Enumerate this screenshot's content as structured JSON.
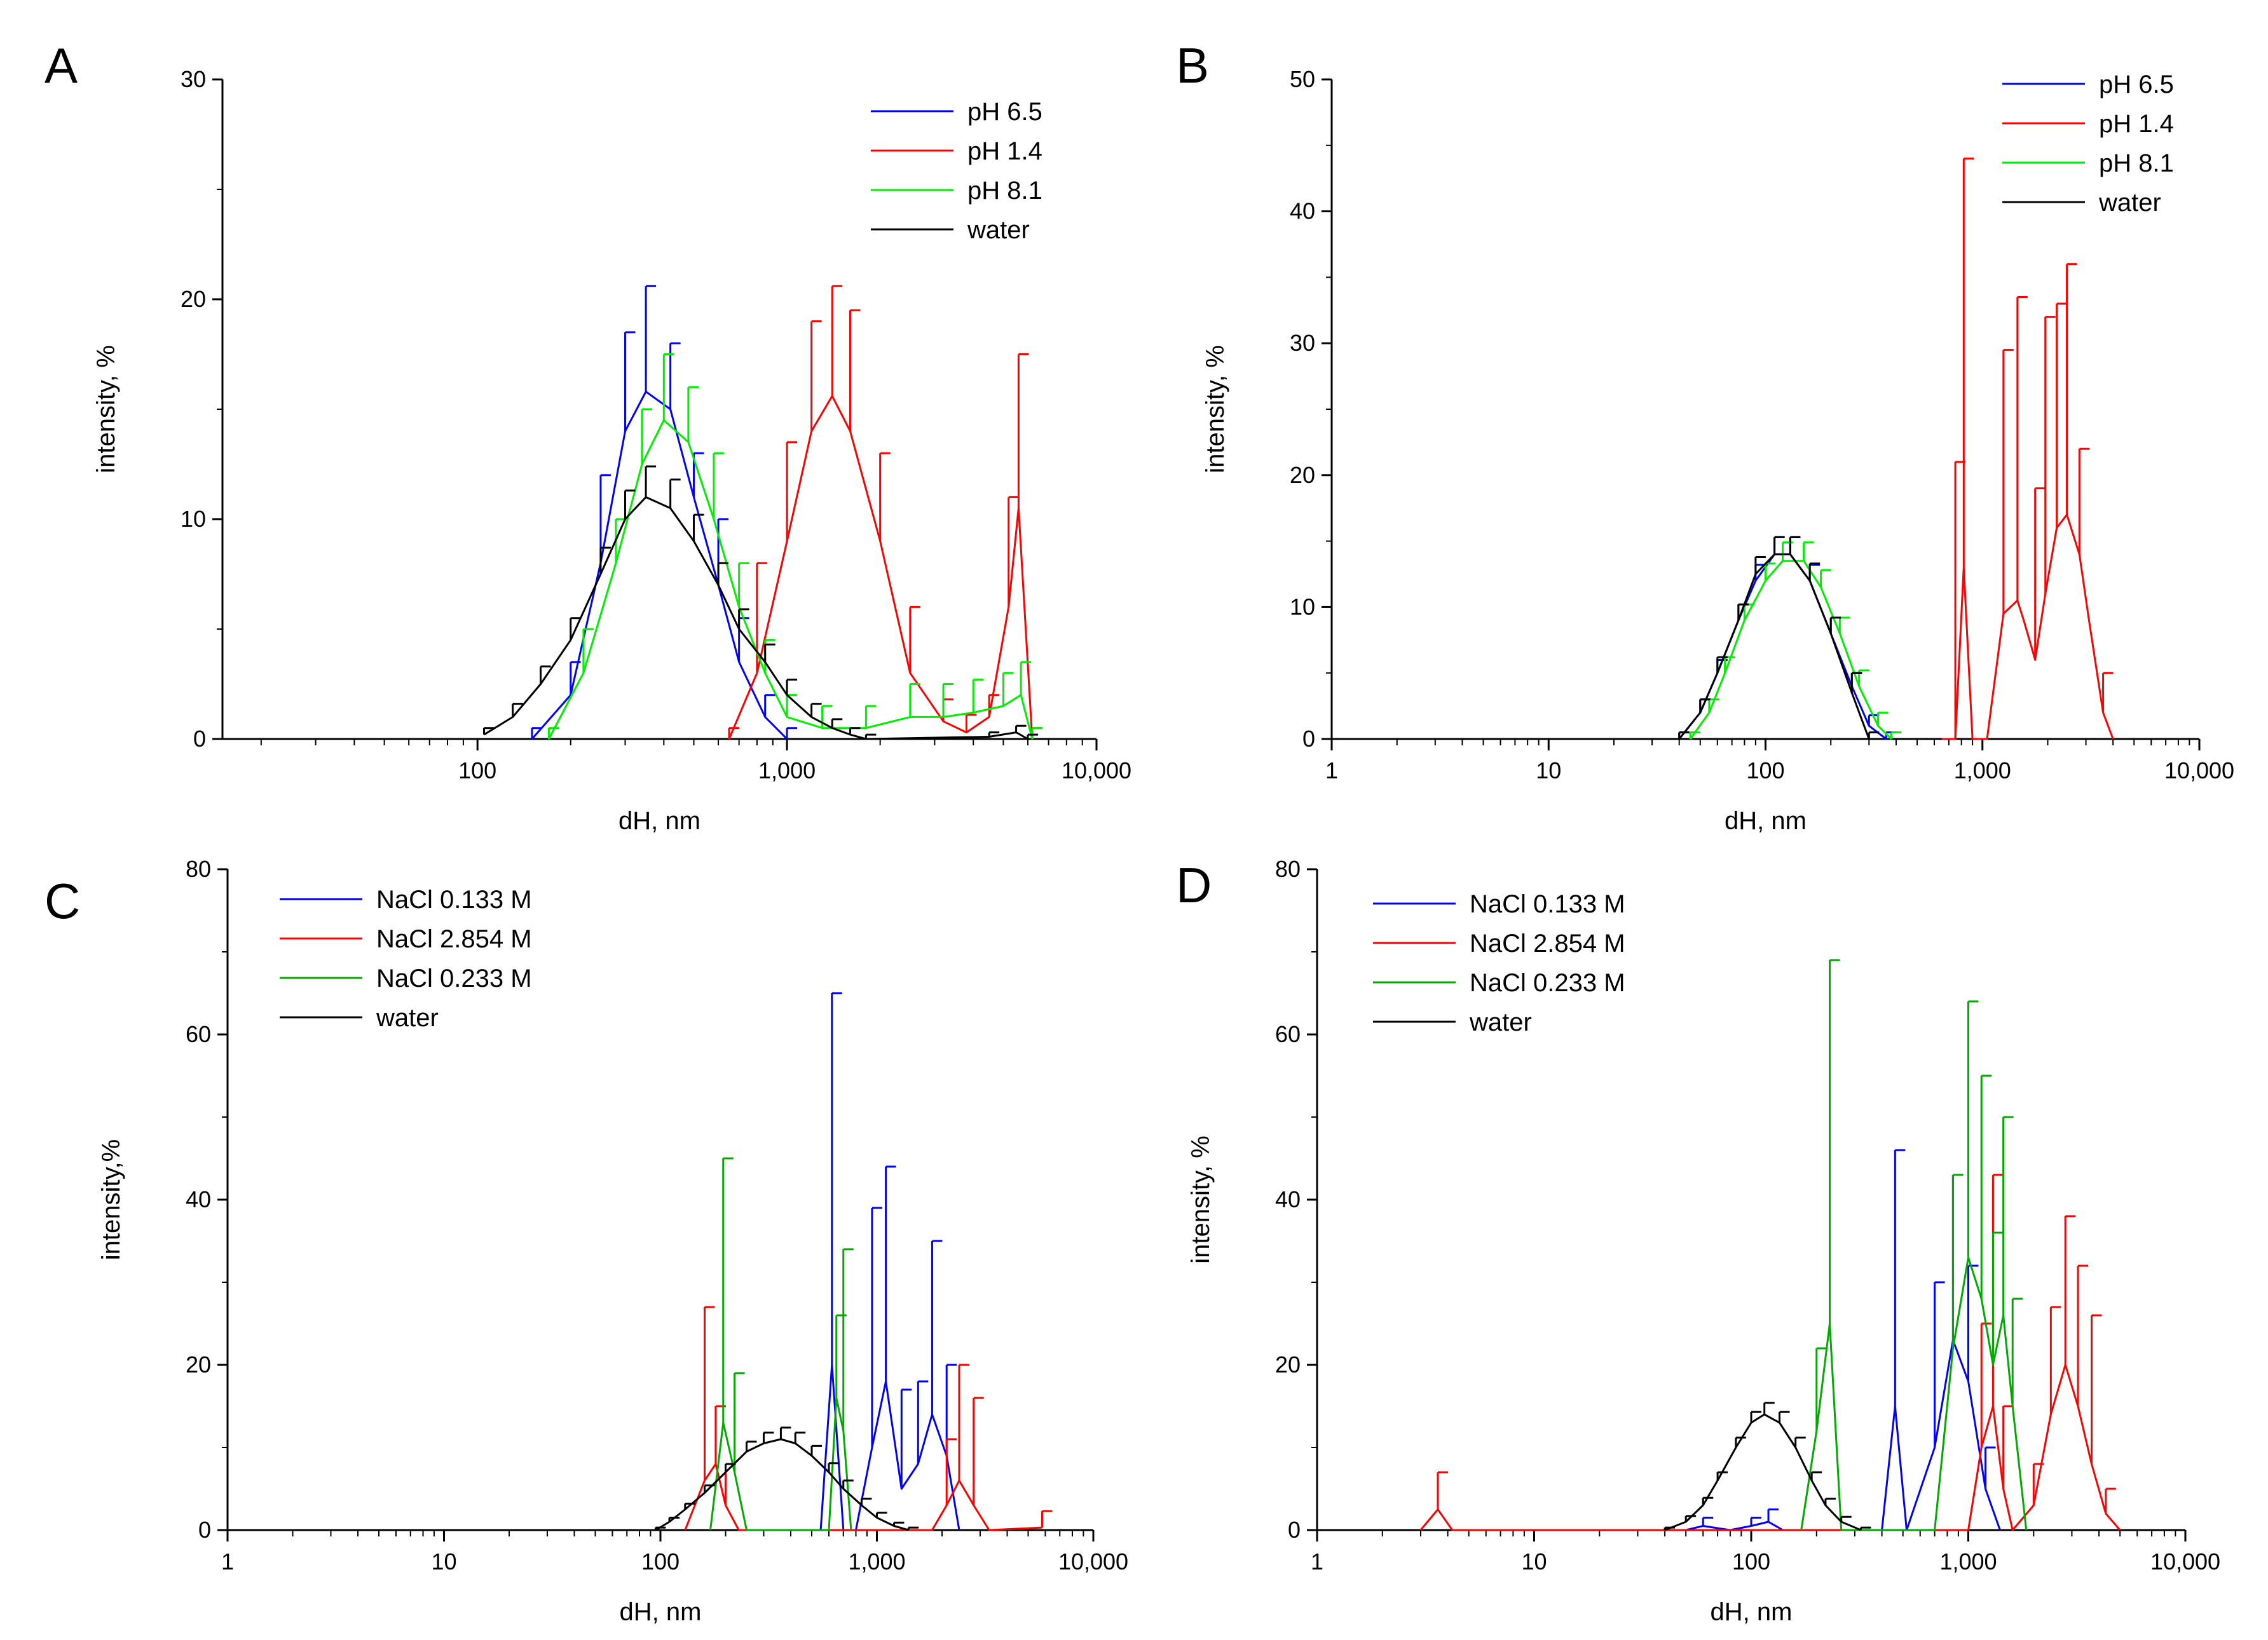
{
  "chart_data": [
    {
      "panel": "A",
      "type": "line",
      "title": "",
      "xlabel": "dH, nm",
      "ylabel": "intensity, %",
      "xscale": "log",
      "xlim": [
        15,
        10000
      ],
      "ylim": [
        0,
        30
      ],
      "xticks": [
        100,
        1000,
        10000
      ],
      "xtick_labels": [
        "100",
        "1,000",
        "10,000"
      ],
      "yticks": [
        0,
        10,
        20,
        30
      ],
      "ytick_labels": [
        "0",
        "10",
        "20",
        "30"
      ],
      "legend_position": "top-right",
      "series": [
        {
          "name": "pH 6.5",
          "color": "#0000ff",
          "x": [
            150,
            200,
            250,
            300,
            350,
            420,
            500,
            600,
            700,
            850,
            1000
          ],
          "y": [
            0,
            2,
            8,
            14,
            15.8,
            15,
            11,
            7,
            3.5,
            1,
            0
          ],
          "err": [
            0.5,
            1.5,
            4,
            4.5,
            4.8,
            3,
            2,
            3,
            2,
            1,
            0.5
          ]
        },
        {
          "name": "pH 1.4",
          "color": "#ff0000",
          "x": [
            650,
            800,
            1000,
            1200,
            1400,
            1600,
            2000,
            2500,
            3200,
            3800,
            4500,
            5200,
            5600,
            6200
          ],
          "y": [
            0,
            3,
            9,
            14,
            15.6,
            14,
            9,
            3,
            0.8,
            0.3,
            1,
            6,
            10.5,
            0
          ],
          "err": [
            0.5,
            5,
            4.5,
            5,
            5,
            5.5,
            4,
            3,
            1,
            0.8,
            1,
            5,
            7,
            0.5
          ]
        },
        {
          "name": "pH 8.1",
          "color": "#00ee00",
          "x": [
            170,
            220,
            280,
            340,
            400,
            480,
            580,
            700,
            850,
            1000,
            1300,
            1800,
            2500,
            3200,
            4000,
            5000,
            5700,
            6200
          ],
          "y": [
            0,
            3,
            8,
            12.5,
            14.5,
            13.5,
            10,
            6,
            3,
            1,
            0.5,
            0.5,
            1,
            1,
            1.2,
            1.5,
            2,
            0
          ],
          "err": [
            0.5,
            2,
            2,
            2.5,
            3,
            2.5,
            3,
            2,
            1.5,
            1,
            1,
            1,
            1.5,
            1.5,
            1.5,
            1.5,
            1.5,
            0.5
          ]
        },
        {
          "name": "water",
          "color": "#000000",
          "x": [
            105,
            130,
            160,
            200,
            250,
            300,
            350,
            420,
            500,
            600,
            700,
            850,
            1000,
            1200,
            1400,
            1600,
            1800,
            4500,
            5500,
            6000
          ],
          "y": [
            0.2,
            1,
            2.5,
            4.5,
            7.5,
            10,
            11,
            10.5,
            9,
            7,
            5,
            3.5,
            2,
            1,
            0.5,
            0.2,
            0,
            0.1,
            0.3,
            0
          ],
          "err": [
            0.3,
            0.6,
            0.8,
            1,
            1.2,
            1.3,
            1.4,
            1.3,
            1.2,
            1,
            0.9,
            0.8,
            0.7,
            0.6,
            0.4,
            0.3,
            0.2,
            0.2,
            0.3,
            0.2
          ]
        }
      ]
    },
    {
      "panel": "B",
      "type": "line",
      "title": "",
      "xlabel": "dH, nm",
      "ylabel": "intensity, %",
      "xscale": "log",
      "xlim": [
        1,
        10000
      ],
      "ylim": [
        0,
        50
      ],
      "xticks": [
        1,
        10,
        100,
        1000,
        10000
      ],
      "xtick_labels": [
        "1",
        "10",
        "100",
        "1,000",
        "10,000"
      ],
      "yticks": [
        0,
        10,
        20,
        30,
        40,
        50
      ],
      "ytick_labels": [
        "0",
        "10",
        "20",
        "30",
        "40",
        "50"
      ],
      "legend_position": "top-right",
      "series": [
        {
          "name": "pH 6.5",
          "color": "#0000ff",
          "x": [
            40,
            50,
            60,
            75,
            90,
            110,
            130,
            160,
            200,
            250,
            300,
            360
          ],
          "y": [
            0,
            2,
            5,
            9,
            12,
            14,
            14,
            12,
            8,
            4,
            1,
            0
          ],
          "err": [
            0.5,
            1,
            1,
            1.2,
            1.2,
            1.3,
            1.3,
            1.2,
            1.2,
            1,
            0.8,
            0.5
          ]
        },
        {
          "name": "pH 1.4",
          "color": "#ff0000",
          "x": [
            650,
            750,
            820,
            900,
            1050,
            1250,
            1450,
            1550,
            1750,
            1950,
            2200,
            2450,
            2800,
            3100,
            3600,
            4000
          ],
          "y": [
            0,
            0,
            13,
            0,
            0,
            9.5,
            10.5,
            9,
            6,
            11,
            16,
            17,
            14,
            9,
            2,
            0
          ],
          "err": [
            0,
            21,
            31,
            0,
            0,
            20,
            23,
            0,
            13,
            21,
            17,
            19,
            8,
            0,
            3,
            0
          ]
        },
        {
          "name": "pH 8.1",
          "color": "#00ee00",
          "x": [
            45,
            55,
            65,
            80,
            100,
            120,
            150,
            180,
            220,
            270,
            330,
            380
          ],
          "y": [
            0,
            2,
            5,
            9,
            12,
            13.5,
            13.5,
            11.5,
            8,
            4,
            1,
            0
          ],
          "err": [
            0.5,
            1,
            1.2,
            1.2,
            1.3,
            1.4,
            1.4,
            1.3,
            1.2,
            1.2,
            1,
            0.5
          ]
        },
        {
          "name": "water",
          "color": "#000000",
          "x": [
            40,
            50,
            60,
            75,
            90,
            110,
            130,
            160,
            200,
            250,
            300
          ],
          "y": [
            0,
            2,
            5,
            9,
            12.5,
            14,
            14,
            12,
            8,
            3.5,
            0
          ],
          "err": [
            0.5,
            1,
            1.2,
            1.2,
            1.3,
            1.3,
            1.3,
            1.3,
            1.2,
            1.5,
            0.5
          ]
        }
      ]
    },
    {
      "panel": "C",
      "type": "line",
      "title": "",
      "xlabel": "dH, nm",
      "ylabel": "intensity,%",
      "xscale": "log",
      "xlim": [
        1,
        10000
      ],
      "ylim": [
        0,
        80
      ],
      "xticks": [
        1,
        10,
        100,
        1000,
        10000
      ],
      "xtick_labels": [
        "1",
        "10",
        "100",
        "1,000",
        "10,000"
      ],
      "yticks": [
        0,
        20,
        40,
        60,
        80
      ],
      "ytick_labels": [
        "0",
        "20",
        "40",
        "60",
        "80"
      ],
      "legend_position": "top-left",
      "series": [
        {
          "name": "NaCl 0.133 M",
          "color": "#0000ff",
          "x": [
            550,
            620,
            700,
            800,
            950,
            1100,
            1300,
            1550,
            1800,
            2100,
            2400
          ],
          "y": [
            0,
            20,
            0,
            0,
            10,
            18,
            5,
            8,
            14,
            9,
            0
          ],
          "err": [
            0,
            45,
            0,
            0,
            29,
            26,
            12,
            10,
            21,
            11,
            0
          ]
        },
        {
          "name": "NaCl 2.854 M",
          "color": "#ff0000",
          "x": [
            130,
            160,
            180,
            200,
            230,
            1800,
            2100,
            2400,
            2800,
            3300,
            5800
          ],
          "y": [
            0,
            6,
            8,
            3,
            0,
            0,
            3,
            6,
            3,
            0,
            0.3
          ],
          "err": [
            0,
            21,
            7,
            5,
            0,
            0,
            8,
            14,
            13,
            0,
            2
          ]
        },
        {
          "name": "NaCl 0.233 M",
          "color": "#00aa00",
          "x": [
            170,
            195,
            220,
            250,
            600,
            650,
            700,
            760
          ],
          "y": [
            0,
            13,
            7,
            0,
            0,
            16,
            12,
            0
          ],
          "err": [
            0,
            32,
            12,
            0,
            0,
            10,
            22,
            0
          ]
        },
        {
          "name": "water",
          "color": "#000000",
          "x": [
            95,
            110,
            130,
            160,
            200,
            250,
            300,
            360,
            420,
            500,
            600,
            700,
            850,
            1000,
            1200,
            1400
          ],
          "y": [
            0,
            1,
            2.5,
            4.5,
            7,
            9.5,
            10.5,
            11,
            10.5,
            9,
            7,
            5,
            3,
            1.5,
            0.5,
            0
          ],
          "err": [
            0.3,
            0.5,
            0.7,
            0.9,
            1,
            1.2,
            1.3,
            1.4,
            1.3,
            1.2,
            1.1,
            1,
            0.8,
            0.6,
            0.4,
            0.3
          ]
        }
      ]
    },
    {
      "panel": "D",
      "type": "line",
      "title": "",
      "xlabel": "dH, nm",
      "ylabel": "intensity, %",
      "xscale": "log",
      "xlim": [
        1,
        10000
      ],
      "ylim": [
        0,
        80
      ],
      "xticks": [
        1,
        10,
        100,
        1000,
        10000
      ],
      "xtick_labels": [
        "1",
        "10",
        "100",
        "1,000",
        "10,000"
      ],
      "yticks": [
        0,
        20,
        40,
        60,
        80
      ],
      "ytick_labels": [
        "0",
        "20",
        "40",
        "60",
        "80"
      ],
      "legend_position": "top-left",
      "series": [
        {
          "name": "NaCl 0.133 M",
          "color": "#0000ff",
          "x": [
            50,
            60,
            80,
            100,
            120,
            140,
            400,
            460,
            520,
            700,
            850,
            1000,
            1200,
            1400
          ],
          "y": [
            0,
            0.5,
            0,
            0.5,
            1,
            0,
            0,
            15,
            0,
            10,
            23,
            18,
            5,
            0
          ],
          "err": [
            0,
            1,
            0,
            1,
            1.5,
            0,
            0,
            31,
            0,
            20,
            20,
            14,
            5,
            0
          ]
        },
        {
          "name": "NaCl 2.854 M",
          "color": "#ff0000",
          "x": [
            3,
            3.6,
            4.2,
            1000,
            1150,
            1300,
            1450,
            1600,
            2000,
            2400,
            2800,
            3200,
            3700,
            4300,
            5000
          ],
          "y": [
            0,
            2.5,
            0,
            0,
            10,
            15,
            5,
            0,
            3,
            14,
            20,
            15,
            8,
            2,
            0
          ],
          "err": [
            0,
            4.5,
            0,
            0,
            15,
            28,
            10,
            0,
            5,
            13,
            18,
            17,
            18,
            3,
            0
          ]
        },
        {
          "name": "NaCl 0.233 M",
          "color": "#00aa00",
          "x": [
            170,
            200,
            230,
            260,
            700,
            850,
            1000,
            1150,
            1300,
            1450,
            1600,
            1850
          ],
          "y": [
            0,
            12,
            25,
            0,
            0,
            22,
            33,
            28,
            20,
            26,
            15,
            0
          ],
          "err": [
            0,
            10,
            44,
            0,
            0,
            21,
            31,
            27,
            16,
            24,
            13,
            0
          ]
        },
        {
          "name": "water",
          "color": "#000000",
          "x": [
            40,
            50,
            60,
            70,
            85,
            100,
            115,
            135,
            160,
            190,
            220,
            260,
            320
          ],
          "y": [
            0,
            1,
            3,
            6,
            10,
            13,
            14,
            13,
            10,
            6,
            3,
            1,
            0
          ],
          "err": [
            0.3,
            0.7,
            0.9,
            1,
            1.2,
            1.3,
            1.4,
            1.3,
            1.2,
            1,
            0.8,
            0.6,
            0.3
          ]
        }
      ]
    }
  ]
}
